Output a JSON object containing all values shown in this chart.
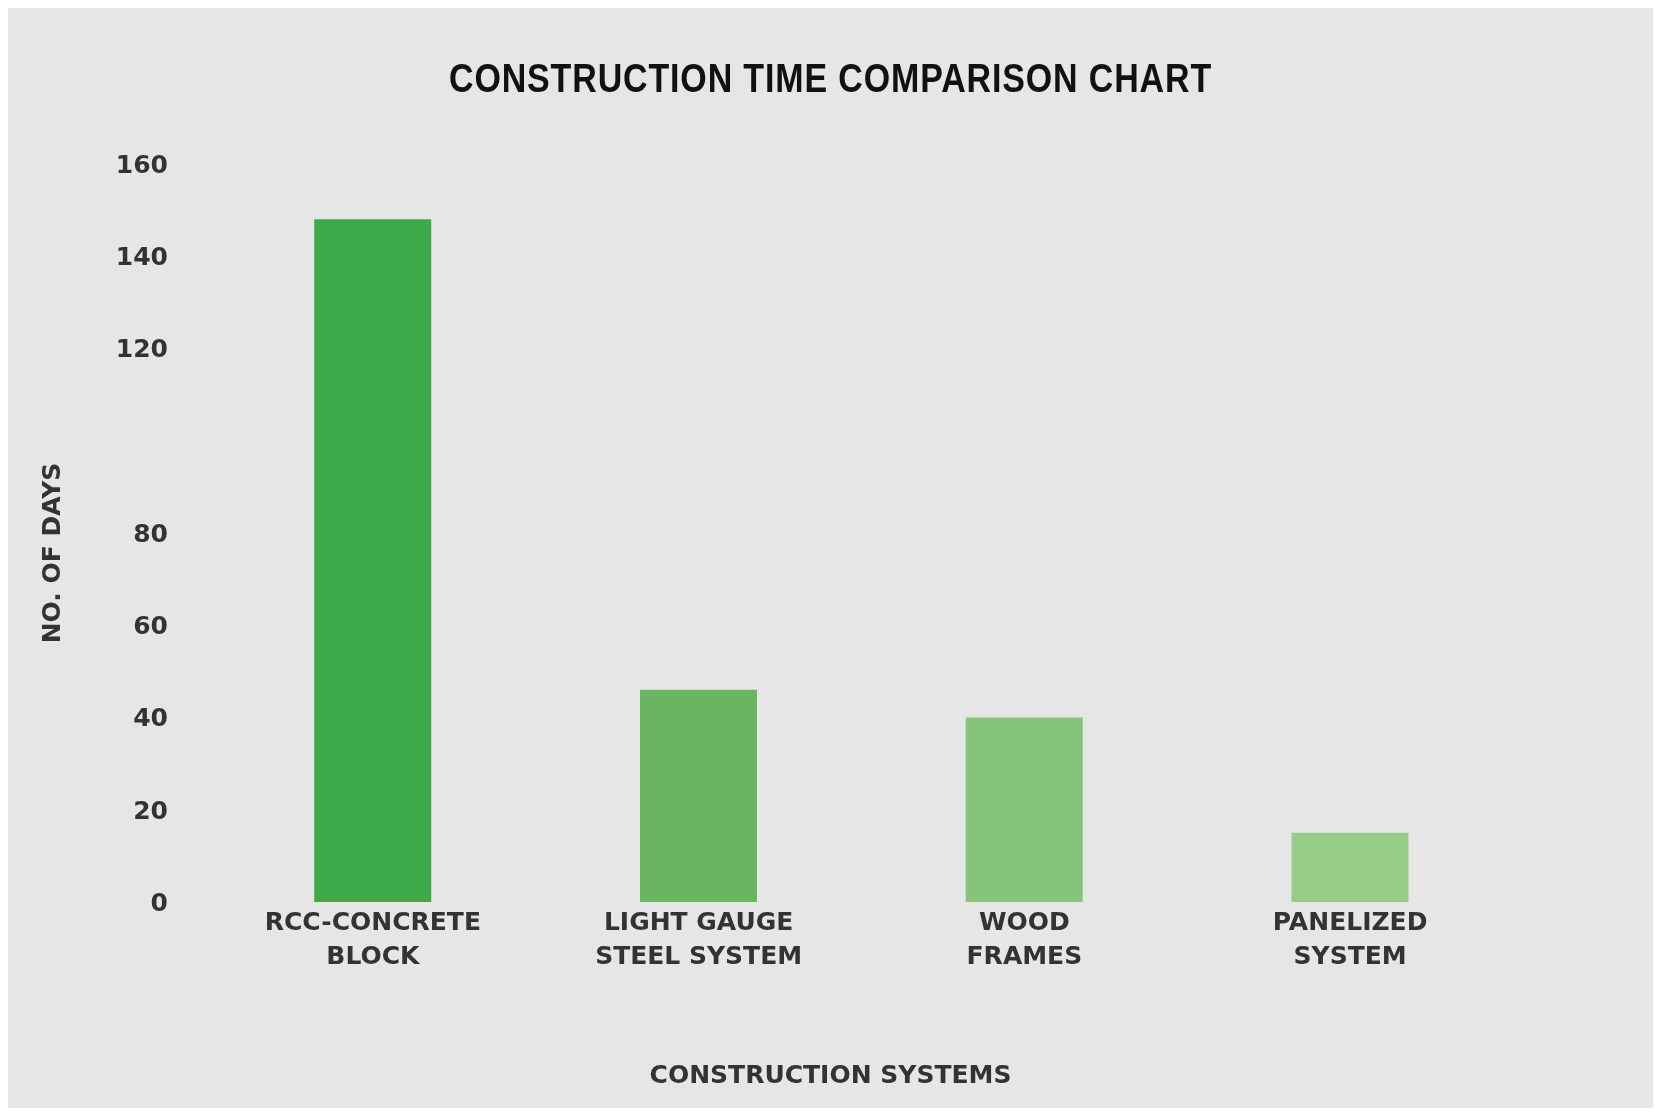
{
  "chart_data": {
    "type": "bar",
    "title": "CONSTRUCTION TIME COMPARISON CHART",
    "xlabel": "CONSTRUCTION SYSTEMS",
    "ylabel": "NO. OF DAYS",
    "categories": [
      "RCC-CONCRETE\nBLOCK",
      "LIGHT GAUGE\nSTEEL SYSTEM",
      "WOOD\nFRAMES",
      "PANELIZED\nSYSTEM"
    ],
    "values": [
      148,
      46,
      40,
      15
    ],
    "colors": [
      "#3ea948",
      "#6ab55f",
      "#86c47a",
      "#97cd88"
    ],
    "ylim": [
      0,
      160
    ],
    "yticks": [
      0,
      20,
      40,
      60,
      80,
      120,
      140,
      160
    ],
    "grid": false,
    "legend": false
  }
}
